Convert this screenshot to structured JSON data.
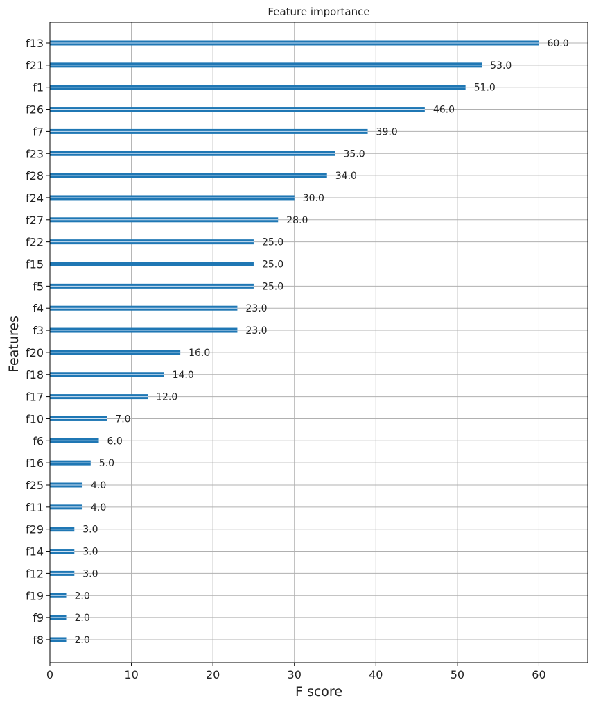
{
  "chart_data": {
    "type": "bar",
    "orientation": "horizontal",
    "title": "Feature importance",
    "xlabel": "F score",
    "ylabel": "Features",
    "xlim": [
      0,
      66
    ],
    "xticks": [
      0,
      10,
      20,
      30,
      40,
      50,
      60
    ],
    "grid": true,
    "bar_color": "#1f77b4",
    "categories": [
      "f13",
      "f21",
      "f1",
      "f26",
      "f7",
      "f23",
      "f28",
      "f24",
      "f27",
      "f22",
      "f15",
      "f5",
      "f4",
      "f3",
      "f20",
      "f18",
      "f17",
      "f10",
      "f6",
      "f16",
      "f25",
      "f11",
      "f29",
      "f14",
      "f12",
      "f19",
      "f9",
      "f8"
    ],
    "values": [
      60,
      53,
      51,
      46,
      39,
      35,
      34,
      30,
      28,
      25,
      25,
      25,
      23,
      23,
      16,
      14,
      12,
      7,
      6,
      5,
      4,
      4,
      3,
      3,
      3,
      2,
      2,
      2
    ],
    "value_labels": [
      "60.0",
      "53.0",
      "51.0",
      "46.0",
      "39.0",
      "35.0",
      "34.0",
      "30.0",
      "28.0",
      "25.0",
      "25.0",
      "25.0",
      "23.0",
      "23.0",
      "16.0",
      "14.0",
      "12.0",
      "7.0",
      "6.0",
      "5.0",
      "4.0",
      "4.0",
      "3.0",
      "3.0",
      "3.0",
      "2.0",
      "2.0",
      "2.0"
    ]
  }
}
